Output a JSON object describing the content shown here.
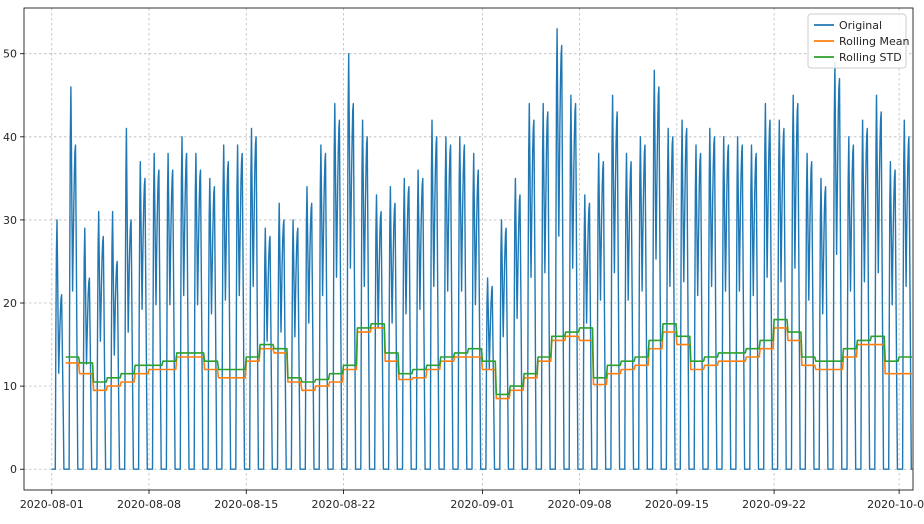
{
  "chart_data": {
    "type": "line",
    "title": "",
    "xlabel": "",
    "ylabel": "",
    "x_range": [
      "2020-07-30",
      "2020-10-02"
    ],
    "ylim": [
      -2.5,
      55.5
    ],
    "grid": true,
    "legend_position": "top-right",
    "x_tick_labels": [
      "2020-08-01",
      "2020-08-08",
      "2020-08-15",
      "2020-08-22",
      "2020-09-01",
      "2020-09-08",
      "2020-09-15",
      "2020-09-22",
      "2020-10-01"
    ],
    "y_tick_labels": [
      "0",
      "10",
      "20",
      "30",
      "40",
      "50"
    ],
    "y_ticks": [
      0,
      10,
      20,
      30,
      40,
      50
    ],
    "frequency": "hourly",
    "original_daily": {
      "dates": [
        "2020-08-01",
        "2020-08-02",
        "2020-08-03",
        "2020-08-04",
        "2020-08-05",
        "2020-08-06",
        "2020-08-07",
        "2020-08-08",
        "2020-08-09",
        "2020-08-10",
        "2020-08-11",
        "2020-08-12",
        "2020-08-13",
        "2020-08-14",
        "2020-08-15",
        "2020-08-16",
        "2020-08-17",
        "2020-08-18",
        "2020-08-19",
        "2020-08-20",
        "2020-08-21",
        "2020-08-22",
        "2020-08-23",
        "2020-08-24",
        "2020-08-25",
        "2020-08-26",
        "2020-08-27",
        "2020-08-28",
        "2020-08-29",
        "2020-08-30",
        "2020-08-31",
        "2020-09-01",
        "2020-09-02",
        "2020-09-03",
        "2020-09-04",
        "2020-09-05",
        "2020-09-06",
        "2020-09-07",
        "2020-09-08",
        "2020-09-09",
        "2020-09-10",
        "2020-09-11",
        "2020-09-12",
        "2020-09-13",
        "2020-09-14",
        "2020-09-15",
        "2020-09-16",
        "2020-09-17",
        "2020-09-18",
        "2020-09-19",
        "2020-09-20",
        "2020-09-21",
        "2020-09-22",
        "2020-09-23",
        "2020-09-24",
        "2020-09-25",
        "2020-09-26",
        "2020-09-27",
        "2020-09-28",
        "2020-09-29",
        "2020-09-30",
        "2020-10-01"
      ],
      "morning_peak": [
        30,
        46,
        29,
        31,
        31,
        41,
        37,
        38,
        38,
        40,
        38,
        35,
        39,
        39,
        41,
        29,
        32,
        30,
        34,
        39,
        44,
        50,
        42,
        33,
        34,
        35,
        36,
        42,
        40,
        40,
        38,
        23,
        30,
        35,
        44,
        44,
        53,
        45,
        33,
        38,
        45,
        38,
        40,
        48,
        41,
        42,
        39,
        41,
        40,
        40,
        39,
        44,
        42,
        45,
        38,
        35,
        49,
        40,
        42,
        45,
        37,
        42
      ],
      "evening_peak": [
        21,
        39,
        23,
        28,
        25,
        30,
        35,
        36,
        36,
        38,
        36,
        34,
        37,
        38,
        40,
        28,
        30,
        29,
        32,
        38,
        42,
        44,
        40,
        31,
        32,
        34,
        35,
        40,
        39,
        39,
        36,
        22,
        29,
        33,
        42,
        43,
        51,
        44,
        32,
        37,
        43,
        37,
        39,
        46,
        40,
        41,
        38,
        40,
        39,
        39,
        38,
        42,
        41,
        44,
        37,
        34,
        47,
        39,
        41,
        43,
        36,
        40
      ],
      "night_min": 0
    },
    "series": [
      {
        "name": "Original",
        "color": "#1f77b4",
        "note_values": "hourly series, see original_daily"
      },
      {
        "name": "Rolling Mean",
        "color": "#ff7f0e",
        "x": [
          "2020-08-02",
          "2020-08-03",
          "2020-08-04",
          "2020-08-05",
          "2020-08-06",
          "2020-08-07",
          "2020-08-08",
          "2020-08-09",
          "2020-08-10",
          "2020-08-11",
          "2020-08-12",
          "2020-08-13",
          "2020-08-14",
          "2020-08-15",
          "2020-08-16",
          "2020-08-17",
          "2020-08-18",
          "2020-08-19",
          "2020-08-20",
          "2020-08-21",
          "2020-08-22",
          "2020-08-23",
          "2020-08-24",
          "2020-08-25",
          "2020-08-26",
          "2020-08-27",
          "2020-08-28",
          "2020-08-29",
          "2020-08-30",
          "2020-08-31",
          "2020-09-01",
          "2020-09-02",
          "2020-09-03",
          "2020-09-04",
          "2020-09-05",
          "2020-09-06",
          "2020-09-07",
          "2020-09-08",
          "2020-09-09",
          "2020-09-10",
          "2020-09-11",
          "2020-09-12",
          "2020-09-13",
          "2020-09-14",
          "2020-09-15",
          "2020-09-16",
          "2020-09-17",
          "2020-09-18",
          "2020-09-19",
          "2020-09-20",
          "2020-09-21",
          "2020-09-22",
          "2020-09-23",
          "2020-09-24",
          "2020-09-25",
          "2020-09-26",
          "2020-09-27",
          "2020-09-28",
          "2020-09-29",
          "2020-09-30",
          "2020-10-01"
        ],
        "values": [
          12.8,
          11.5,
          9.5,
          10.0,
          10.5,
          11.5,
          12.0,
          12.0,
          13.5,
          13.5,
          12.0,
          11.0,
          11.0,
          13.0,
          14.5,
          14.0,
          10.5,
          9.5,
          10.0,
          10.5,
          12.0,
          16.5,
          17.0,
          13.0,
          10.8,
          11.0,
          12.0,
          13.0,
          13.5,
          13.5,
          12.0,
          8.5,
          9.5,
          11.0,
          13.0,
          15.5,
          16.0,
          15.5,
          10.2,
          11.5,
          12.0,
          12.5,
          14.5,
          16.5,
          15.0,
          12.0,
          12.5,
          13.0,
          13.0,
          13.5,
          14.5,
          17.0,
          15.5,
          12.5,
          12.0,
          12.0,
          13.5,
          15.0,
          15.0,
          11.5,
          11.5
        ]
      },
      {
        "name": "Rolling STD",
        "color": "#2ca02c",
        "x": [
          "2020-08-02",
          "2020-08-03",
          "2020-08-04",
          "2020-08-05",
          "2020-08-06",
          "2020-08-07",
          "2020-08-08",
          "2020-08-09",
          "2020-08-10",
          "2020-08-11",
          "2020-08-12",
          "2020-08-13",
          "2020-08-14",
          "2020-08-15",
          "2020-08-16",
          "2020-08-17",
          "2020-08-18",
          "2020-08-19",
          "2020-08-20",
          "2020-08-21",
          "2020-08-22",
          "2020-08-23",
          "2020-08-24",
          "2020-08-25",
          "2020-08-26",
          "2020-08-27",
          "2020-08-28",
          "2020-08-29",
          "2020-08-30",
          "2020-08-31",
          "2020-09-01",
          "2020-09-02",
          "2020-09-03",
          "2020-09-04",
          "2020-09-05",
          "2020-09-06",
          "2020-09-07",
          "2020-09-08",
          "2020-09-09",
          "2020-09-10",
          "2020-09-11",
          "2020-09-12",
          "2020-09-13",
          "2020-09-14",
          "2020-09-15",
          "2020-09-16",
          "2020-09-17",
          "2020-09-18",
          "2020-09-19",
          "2020-09-20",
          "2020-09-21",
          "2020-09-22",
          "2020-09-23",
          "2020-09-24",
          "2020-09-25",
          "2020-09-26",
          "2020-09-27",
          "2020-09-28",
          "2020-09-29",
          "2020-09-30",
          "2020-10-01"
        ],
        "values": [
          13.5,
          12.8,
          10.5,
          11.0,
          11.5,
          12.5,
          12.5,
          13.0,
          14.0,
          14.0,
          13.0,
          12.0,
          12.0,
          13.5,
          15.0,
          14.5,
          11.0,
          10.5,
          10.8,
          11.5,
          12.5,
          17.0,
          17.5,
          14.0,
          11.5,
          12.0,
          12.5,
          13.5,
          14.0,
          14.5,
          13.0,
          9.0,
          10.0,
          11.5,
          13.5,
          16.0,
          16.5,
          17.0,
          11.0,
          12.5,
          13.0,
          13.5,
          15.5,
          17.5,
          16.0,
          13.0,
          13.5,
          14.0,
          14.0,
          14.5,
          15.5,
          18.0,
          16.5,
          13.5,
          13.0,
          13.0,
          14.5,
          15.5,
          16.0,
          13.0,
          13.5
        ]
      }
    ]
  }
}
